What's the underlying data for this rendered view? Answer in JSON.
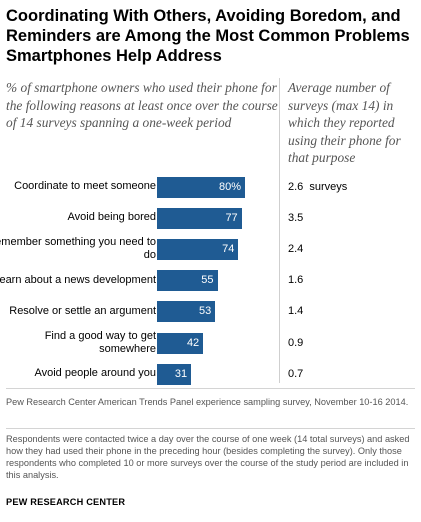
{
  "title": "Coordinating With Others, Avoiding Boredom, and Reminders are Among the Most Common Problems Smartphones Help Address",
  "subtitle": "% of smartphone owners who used their phone for the following reasons at least once over the course of 14 surveys spanning a one-week period",
  "right_header": "Average number of surveys (max 14) in which they reported using their phone for that purpose",
  "colors": {
    "bar": "#1f5b93",
    "bar_text": "#ffffff"
  },
  "chart_data": {
    "type": "bar",
    "orientation": "horizontal",
    "categories": [
      "Coordinate to meet someone",
      "Avoid being bored",
      "Remember something you need to do",
      "Learn about a news development",
      "Resolve or settle an argument",
      "Find a good way to get somewhere",
      "Avoid people around you"
    ],
    "values": [
      80,
      77,
      74,
      55,
      53,
      42,
      31
    ],
    "value_labels": [
      "80%",
      "77",
      "74",
      "55",
      "53",
      "42",
      "31"
    ],
    "xlim": [
      0,
      100
    ],
    "secondary_values": [
      "2.6  surveys",
      "3.5",
      "2.4",
      "1.6",
      "1.4",
      "0.9",
      "0.7"
    ]
  },
  "source": "Pew Research Center American Trends Panel experience sampling survey, November 10-16 2014.",
  "note": "Respondents were contacted twice a day over the course of one week (14 total surveys) and asked how they had used their phone in the preceding hour (besides completing the survey). Only those respondents who completed 10 or more surveys over the course of the study period are included in this analysis.",
  "brand": "PEW RESEARCH CENTER"
}
